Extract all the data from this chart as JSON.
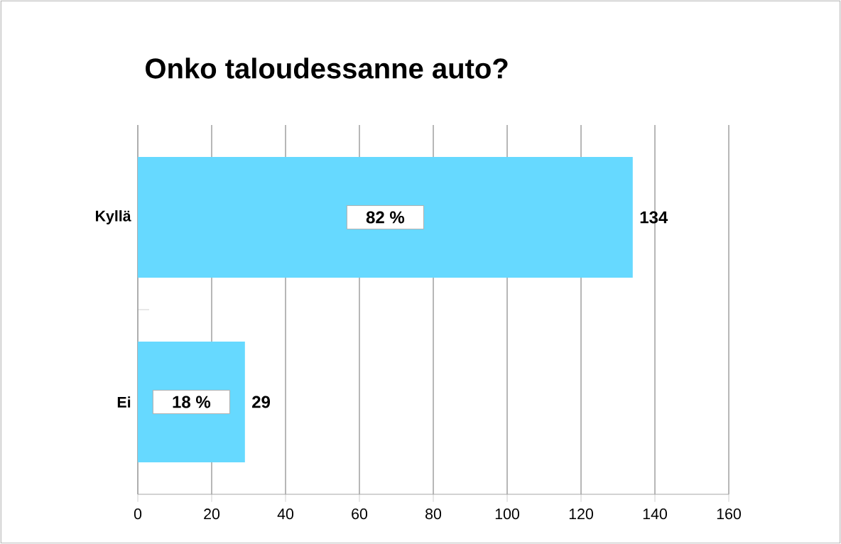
{
  "chart_data": {
    "type": "bar",
    "orientation": "horizontal",
    "title": "Onko taloudessanne auto?",
    "categories": [
      "Kyllä",
      "Ei"
    ],
    "values": [
      134,
      29
    ],
    "color": "#66d9ff",
    "xlim": [
      0,
      160
    ],
    "xticks": [
      0,
      20,
      40,
      60,
      80,
      100,
      120,
      140,
      160
    ],
    "grid": "x",
    "data_labels": true,
    "annotations": [
      "82 %",
      "18 %"
    ]
  }
}
